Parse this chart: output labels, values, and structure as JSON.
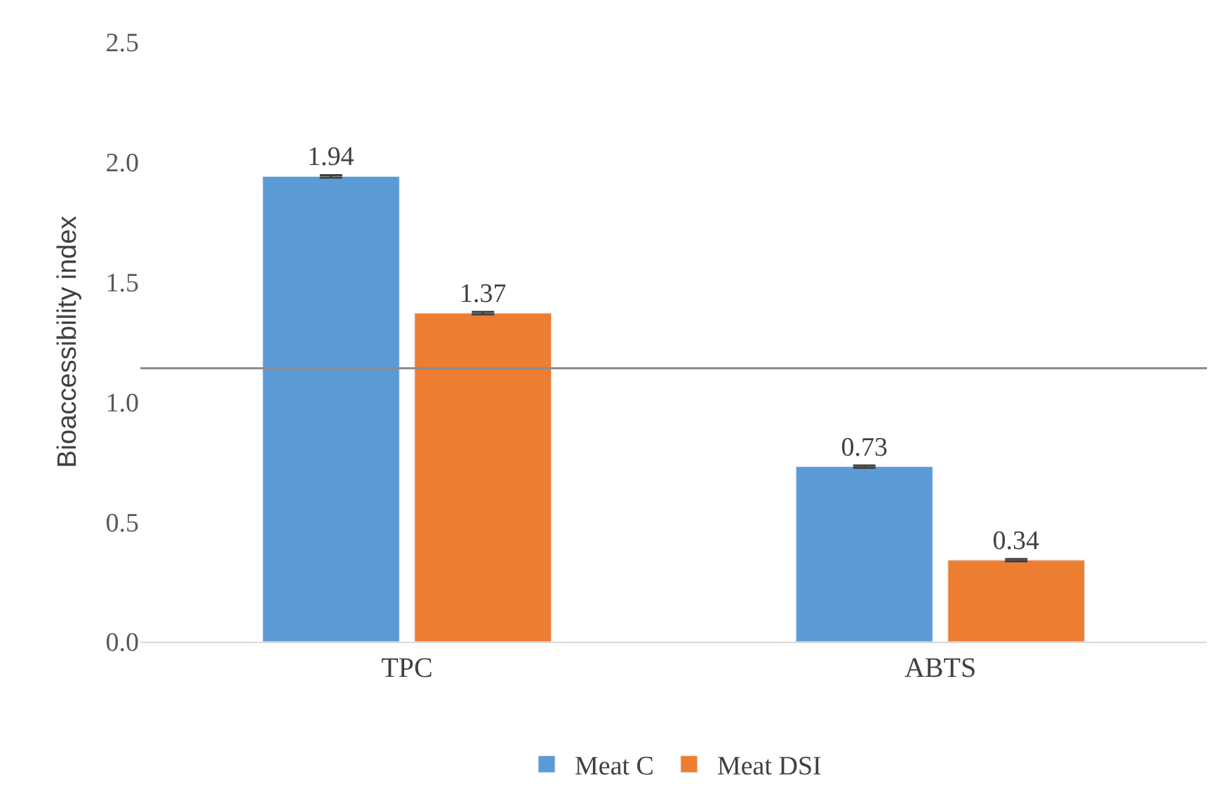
{
  "chart_data": {
    "type": "bar",
    "ylabel": "Bioaccessibility index",
    "categories": [
      "TPC",
      "ABTS"
    ],
    "series": [
      {
        "name": "Meat C",
        "color": "#5b9bd5",
        "values": [
          1.94,
          0.73
        ],
        "errors": [
          0.005,
          0.005
        ]
      },
      {
        "name": "Meat DSI",
        "color": "#ed7d31",
        "values": [
          1.37,
          0.34
        ],
        "errors": [
          0.005,
          0.005
        ]
      }
    ],
    "ylim": [
      0,
      2.5
    ],
    "yticks": [
      {
        "value": 0,
        "label": "0.0"
      },
      {
        "value": 0.5,
        "label": "0.5"
      },
      {
        "value": 1,
        "label": "1.0"
      },
      {
        "value": 1.5,
        "label": "1.5"
      },
      {
        "value": 2,
        "label": "2.0"
      },
      {
        "value": 2.5,
        "label": "2.5"
      }
    ],
    "ref_lines": [
      {
        "axis": "y",
        "value": 1.14,
        "label": null,
        "color": "#8c8c8c"
      }
    ],
    "data_labels": true,
    "legend": "bottom"
  }
}
